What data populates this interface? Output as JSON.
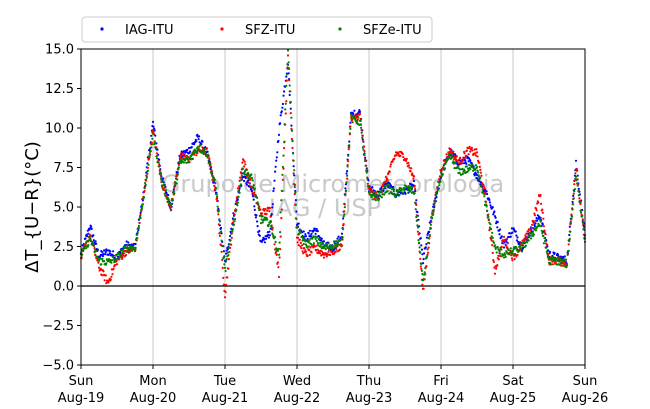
{
  "chart_data": {
    "type": "scatter",
    "ylabel": "ΔT_{U−R}(°C)",
    "ylim": [
      -5.0,
      15.0
    ],
    "yticks": [
      "−5.0",
      "−2.5",
      "0.0",
      "2.5",
      "5.0",
      "7.5",
      "10.0",
      "12.5",
      "15.0"
    ],
    "xlim": [
      "2018-08-19 00:00",
      "2018-08-26 00:00"
    ],
    "xticks": [
      {
        "day": "Sun",
        "date": "Aug-19"
      },
      {
        "day": "Mon",
        "date": "Aug-20"
      },
      {
        "day": "Tue",
        "date": "Aug-21"
      },
      {
        "day": "Wed",
        "date": "Aug-22"
      },
      {
        "day": "Thu",
        "date": "Aug-23"
      },
      {
        "day": "Fri",
        "date": "Aug-24"
      },
      {
        "day": "Sat",
        "date": "Aug-25"
      },
      {
        "day": "Sun",
        "date": "Aug-26"
      }
    ],
    "x_unit_note_hours": [
      0,
      3,
      6,
      9,
      12,
      15,
      18,
      21
    ],
    "grid": "vertical",
    "reference_line_y": 0.0,
    "legend_position": "top",
    "watermark": [
      "Grupo de Micrometeorologia",
      "IAG / USP"
    ],
    "series": [
      {
        "name": "IAG-ITU",
        "color": "#0000ff",
        "x": [
          "08-19 00",
          "08-19 03",
          "08-19 06",
          "08-19 09",
          "08-19 12",
          "08-19 15",
          "08-19 18",
          "08-19 21",
          "08-20 00",
          "08-20 03",
          "08-20 06",
          "08-20 09",
          "08-20 12",
          "08-20 15",
          "08-20 18",
          "08-20 21",
          "08-21 00",
          "08-21 03",
          "08-21 06",
          "08-21 09",
          "08-21 12",
          "08-21 15",
          "08-21 18",
          "08-21 21",
          "08-22 00",
          "08-22 03",
          "08-22 06",
          "08-22 09",
          "08-22 12",
          "08-22 15",
          "08-22 18",
          "08-22 21",
          "08-23 00",
          "08-23 03",
          "08-23 06",
          "08-23 09",
          "08-23 12",
          "08-23 15",
          "08-23 18",
          "08-23 21",
          "08-24 00",
          "08-24 03",
          "08-24 06",
          "08-24 09",
          "08-24 12",
          "08-24 15",
          "08-24 18",
          "08-24 21",
          "08-25 00",
          "08-25 03",
          "08-25 06",
          "08-25 09",
          "08-25 12",
          "08-25 15",
          "08-25 18",
          "08-25 21",
          "08-26 00"
        ],
        "y": [
          2.0,
          3.8,
          1.9,
          2.2,
          1.8,
          2.6,
          2.4,
          6.0,
          10.3,
          6.8,
          5.0,
          8.2,
          8.6,
          9.4,
          8.4,
          6.0,
          1.5,
          4.6,
          7.0,
          6.0,
          2.6,
          3.4,
          9.8,
          14.2,
          4.0,
          3.0,
          3.6,
          2.6,
          2.4,
          3.2,
          10.8,
          11.0,
          6.2,
          5.8,
          6.5,
          5.8,
          6.0,
          6.4,
          1.6,
          4.5,
          7.0,
          8.5,
          7.8,
          8.0,
          7.0,
          6.0,
          4.4,
          2.6,
          3.6,
          2.5,
          3.5,
          4.5,
          2.0,
          1.8,
          1.6,
          7.8,
          3.2
        ]
      },
      {
        "name": "SFZ-ITU",
        "color": "#ff0000",
        "x": [
          "08-19 00",
          "08-19 03",
          "08-19 06",
          "08-19 09",
          "08-19 12",
          "08-19 15",
          "08-19 18",
          "08-19 21",
          "08-20 00",
          "08-20 03",
          "08-20 06",
          "08-20 09",
          "08-20 12",
          "08-20 15",
          "08-20 18",
          "08-20 21",
          "08-21 00",
          "08-21 03",
          "08-21 06",
          "08-21 09",
          "08-21 12",
          "08-21 15",
          "08-21 18",
          "08-21 21",
          "08-22 00",
          "08-22 03",
          "08-22 06",
          "08-22 09",
          "08-22 12",
          "08-22 15",
          "08-22 18",
          "08-22 21",
          "08-23 00",
          "08-23 03",
          "08-23 06",
          "08-23 09",
          "08-23 12",
          "08-23 15",
          "08-23 18",
          "08-23 21",
          "08-24 00",
          "08-24 03",
          "08-24 06",
          "08-24 09",
          "08-24 12",
          "08-24 15",
          "08-24 18",
          "08-24 21",
          "08-25 00",
          "08-25 03",
          "08-25 06",
          "08-25 09",
          "08-25 12",
          "08-25 15",
          "08-25 18",
          "08-25 21",
          "08-26 00"
        ],
        "y": [
          1.8,
          3.2,
          1.2,
          0.2,
          1.6,
          2.2,
          2.3,
          5.8,
          9.8,
          6.5,
          5.0,
          8.2,
          8.0,
          8.6,
          8.5,
          6.0,
          -0.5,
          4.4,
          8.0,
          6.2,
          4.6,
          4.8,
          0.8,
          14.5,
          3.0,
          2.0,
          2.4,
          2.0,
          2.2,
          2.6,
          10.5,
          10.8,
          6.0,
          5.6,
          6.8,
          8.4,
          8.2,
          6.8,
          -0.4,
          4.4,
          7.4,
          8.6,
          7.8,
          8.6,
          8.4,
          5.4,
          1.0,
          3.0,
          1.8,
          2.6,
          3.6,
          5.8,
          1.6,
          1.6,
          1.4,
          7.6,
          2.8
        ]
      },
      {
        "name": "SFZe-ITU",
        "color": "#008000",
        "x": [
          "08-19 00",
          "08-19 03",
          "08-19 06",
          "08-19 09",
          "08-19 12",
          "08-19 15",
          "08-19 18",
          "08-19 21",
          "08-20 00",
          "08-20 03",
          "08-20 06",
          "08-20 09",
          "08-20 12",
          "08-20 15",
          "08-20 18",
          "08-20 21",
          "08-21 00",
          "08-21 03",
          "08-21 06",
          "08-21 09",
          "08-21 12",
          "08-21 15",
          "08-21 18",
          "08-21 21",
          "08-22 00",
          "08-22 03",
          "08-22 06",
          "08-22 09",
          "08-22 12",
          "08-22 15",
          "08-22 18",
          "08-22 21",
          "08-23 00",
          "08-23 03",
          "08-23 06",
          "08-23 09",
          "08-23 12",
          "08-23 15",
          "08-23 18",
          "08-23 21",
          "08-24 00",
          "08-24 03",
          "08-24 06",
          "08-24 09",
          "08-24 12",
          "08-24 15",
          "08-24 18",
          "08-24 21",
          "08-25 00",
          "08-25 03",
          "08-25 06",
          "08-25 09",
          "08-25 12",
          "08-25 15",
          "08-25 18",
          "08-25 21",
          "08-26 00"
        ],
        "y": [
          1.9,
          3.0,
          1.6,
          1.5,
          1.8,
          2.4,
          2.4,
          5.8,
          9.6,
          6.5,
          5.0,
          7.8,
          8.0,
          8.8,
          8.4,
          6.2,
          1.0,
          4.0,
          7.4,
          6.8,
          4.2,
          4.0,
          2.0,
          15.0,
          3.6,
          2.6,
          3.0,
          2.4,
          2.6,
          2.8,
          10.6,
          10.4,
          5.8,
          5.6,
          6.2,
          5.8,
          6.2,
          6.0,
          0.2,
          4.4,
          7.0,
          8.2,
          7.2,
          7.4,
          7.6,
          5.0,
          2.4,
          2.0,
          2.2,
          2.4,
          3.2,
          4.0,
          1.6,
          1.6,
          1.4,
          7.0,
          3.0
        ]
      }
    ]
  }
}
